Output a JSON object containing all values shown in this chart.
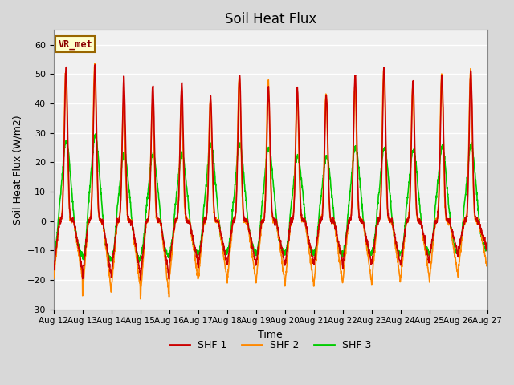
{
  "title": "Soil Heat Flux",
  "xlabel": "Time",
  "ylabel": "Soil Heat Flux (W/m2)",
  "ylim": [
    -30,
    65
  ],
  "yticks": [
    -30,
    -20,
    -10,
    0,
    10,
    20,
    30,
    40,
    50,
    60
  ],
  "num_days": 15,
  "pts_per_day": 144,
  "shf1_color": "#cc0000",
  "shf2_color": "#ff8800",
  "shf3_color": "#00cc00",
  "shf1_linewidth": 1.2,
  "shf2_linewidth": 1.2,
  "shf3_linewidth": 1.2,
  "fig_bg_color": "#d8d8d8",
  "plot_bg_color": "#f0f0f0",
  "grid_color": "#ffffff",
  "annotation_text": "VR_met",
  "day_peaks_shf1": [
    52,
    53,
    48,
    46,
    47,
    42,
    50,
    45,
    45,
    43,
    50,
    53,
    48,
    50,
    51
  ],
  "day_peaks_shf2": [
    51,
    53,
    40,
    40,
    40,
    41,
    49,
    48,
    44,
    43,
    46,
    52,
    45,
    50,
    51
  ],
  "day_peaks_shf3": [
    27,
    29,
    23,
    23,
    23,
    26,
    26,
    25,
    22,
    22,
    25,
    25,
    24,
    25,
    26
  ],
  "day_min_shf1": [
    -17,
    -19,
    -18,
    -20,
    -15,
    -15,
    -15,
    -15,
    -15,
    -15,
    -15,
    -15,
    -15,
    -12,
    -10
  ],
  "day_min_shf2": [
    -20,
    -25,
    -23,
    -26,
    -20,
    -20,
    -21,
    -21,
    -22,
    -22,
    -21,
    -21,
    -20,
    -20,
    -16
  ],
  "day_min_shf3": [
    -11,
    -13,
    -13,
    -12,
    -11,
    -11,
    -10,
    -11,
    -11,
    -11,
    -11,
    -11,
    -11,
    -11,
    -10
  ],
  "xtick_labels": [
    "Aug 12",
    "Aug 13",
    "Aug 14",
    "Aug 15",
    "Aug 16",
    "Aug 17",
    "Aug 18",
    "Aug 19",
    "Aug 20",
    "Aug 21",
    "Aug 22",
    "Aug 23",
    "Aug 24",
    "Aug 25",
    "Aug 26",
    "Aug 27"
  ],
  "legend_labels": [
    "SHF 1",
    "SHF 2",
    "SHF 3"
  ]
}
